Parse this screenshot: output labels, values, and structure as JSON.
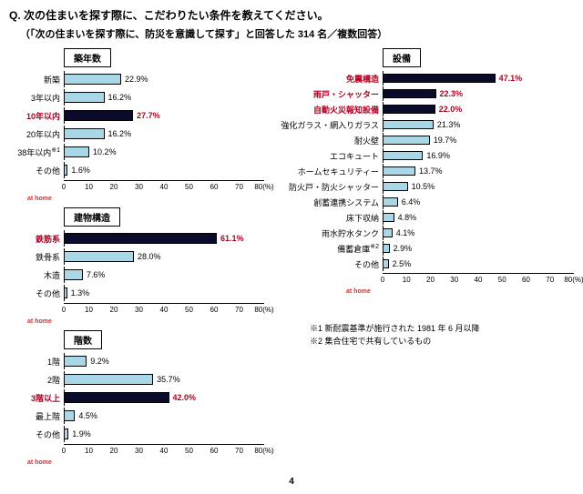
{
  "question": "Q. 次の住まいを探す際に、こだわりたい条件を教えてください。",
  "subtitle": "（「次の住まいを探す際に、防災を意識して探す」と回答した 314 名／複数回答）",
  "brand": "at home",
  "page_number": "4",
  "colors": {
    "bar_normal": "#a8d8e8",
    "bar_highlight": "#0a0a2a",
    "text_highlight": "#b00020",
    "axis": "#000000"
  },
  "x_axis": {
    "min": 0,
    "max": 80,
    "step": 10,
    "unit": "(%)"
  },
  "charts": {
    "age": {
      "title": "築年数",
      "items": [
        {
          "label": "新築",
          "value": 22.9,
          "hl": false
        },
        {
          "label": "3年以内",
          "value": 16.2,
          "hl": false
        },
        {
          "label": "10年以内",
          "value": 27.7,
          "hl": true
        },
        {
          "label": "20年以内",
          "value": 16.2,
          "hl": false
        },
        {
          "label": "38年以内",
          "sup": "※1",
          "value": 10.2,
          "hl": false
        },
        {
          "label": "その他",
          "value": 1.6,
          "hl": false
        }
      ]
    },
    "structure": {
      "title": "建物構造",
      "items": [
        {
          "label": "鉄筋系",
          "value": 61.1,
          "hl": true
        },
        {
          "label": "鉄骨系",
          "value": 28.0,
          "hl": false
        },
        {
          "label": "木造",
          "value": 7.6,
          "hl": false
        },
        {
          "label": "その他",
          "value": 1.3,
          "hl": false
        }
      ]
    },
    "floors": {
      "title": "階数",
      "items": [
        {
          "label": "1階",
          "value": 9.2,
          "hl": false
        },
        {
          "label": "2階",
          "value": 35.7,
          "hl": false
        },
        {
          "label": "3階以上",
          "value": 42.0,
          "hl": true
        },
        {
          "label": "最上階",
          "value": 4.5,
          "hl": false
        },
        {
          "label": "その他",
          "value": 1.9,
          "hl": false
        }
      ]
    },
    "equipment": {
      "title": "設備",
      "items": [
        {
          "label": "免震構造",
          "value": 47.1,
          "hl": true
        },
        {
          "label": "雨戸・シャッター",
          "value": 22.3,
          "hl": true
        },
        {
          "label": "自動火災報知設備",
          "value": 22.0,
          "hl": true
        },
        {
          "label": "強化ガラス・網入りガラス",
          "value": 21.3,
          "hl": false
        },
        {
          "label": "耐火壁",
          "value": 19.7,
          "hl": false
        },
        {
          "label": "エコキュート",
          "value": 16.9,
          "hl": false
        },
        {
          "label": "ホームセキュリティー",
          "value": 13.7,
          "hl": false
        },
        {
          "label": "防火戸・防火シャッター",
          "value": 10.5,
          "hl": false
        },
        {
          "label": "創蓄連携システム",
          "value": 6.4,
          "hl": false
        },
        {
          "label": "床下収納",
          "value": 4.8,
          "hl": false
        },
        {
          "label": "雨水貯水タンク",
          "value": 4.1,
          "hl": false
        },
        {
          "label": "備蓄倉庫",
          "sup": "※2",
          "value": 2.9,
          "hl": false
        },
        {
          "label": "その他",
          "value": 2.5,
          "hl": false
        }
      ]
    }
  },
  "footnotes": [
    "※1 新耐震基準が施行された 1981 年 6 月以降",
    "※2 集合住宅で共有しているもの"
  ]
}
